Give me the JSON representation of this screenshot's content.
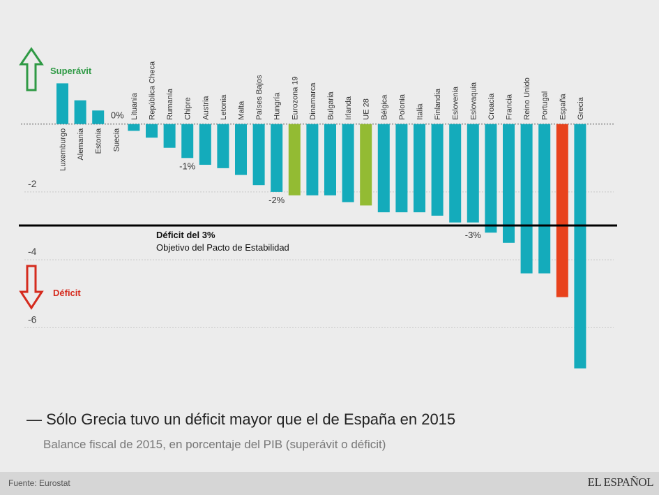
{
  "chart_data": {
    "type": "bar",
    "categories": [
      "Luxemburgo",
      "Alemania",
      "Estonia",
      "Suecia",
      "Lituania",
      "República Checa",
      "Rumanía",
      "Chipre",
      "Austria",
      "Letonia",
      "Malta",
      "Países Bajos",
      "Hungría",
      "Eurozona 19",
      "Dinamarca",
      "Bulgaria",
      "Irlanda",
      "UE 28",
      "Bélgica",
      "Polonia",
      "Italia",
      "Finlandia",
      "Eslovenia",
      "Eslovaquia",
      "Croacia",
      "Francia",
      "Reino Unido",
      "Portugal",
      "España",
      "Grecia"
    ],
    "values": [
      1.2,
      0.7,
      0.4,
      0.0,
      -0.2,
      -0.4,
      -0.7,
      -1.0,
      -1.2,
      -1.3,
      -1.5,
      -1.8,
      -2.0,
      -2.1,
      -2.1,
      -2.1,
      -2.3,
      -2.4,
      -2.6,
      -2.6,
      -2.6,
      -2.7,
      -2.9,
      -2.9,
      -3.2,
      -3.5,
      -4.4,
      -4.4,
      -5.1,
      -7.2
    ],
    "highlight": {
      "Eurozona 19": "#93bb33",
      "UE 28": "#93bb33",
      "España": "#e8421c"
    },
    "default_color": "#14abbb",
    "ylim": [
      -7.4,
      1.7
    ],
    "yticks": [
      -2,
      -4,
      -6
    ],
    "ytick_labels": [
      "-2",
      "-4",
      "-6"
    ],
    "grid": "dotted horizontal",
    "reference_line": {
      "value": -3,
      "label_bold": "Déficit del 3%",
      "label": "Objetivo del Pacto de Estabilidad"
    },
    "annotations": [
      {
        "text": "0%",
        "category": "Suecia",
        "value": 0
      },
      {
        "text": "-1%",
        "category": "Chipre",
        "value": -1
      },
      {
        "text": "-2%",
        "category": "Hungría",
        "value": -2
      },
      {
        "text": "-3%",
        "category": "Eslovaquia",
        "value": -3
      }
    ],
    "surplus_label": "Superávit",
    "surplus_color": "#2f9a45",
    "deficit_label": "Déficit",
    "deficit_color": "#d52b1e",
    "title": "— Sólo Grecia tuvo un déficit mayor que el de España en 2015",
    "subtitle": "Balance fiscal de 2015, en porcentaje del PIB (superávit o déficit)"
  },
  "footer": {
    "source": "Fuente: Eurostat",
    "logo": "EL ESPAÑOL"
  }
}
